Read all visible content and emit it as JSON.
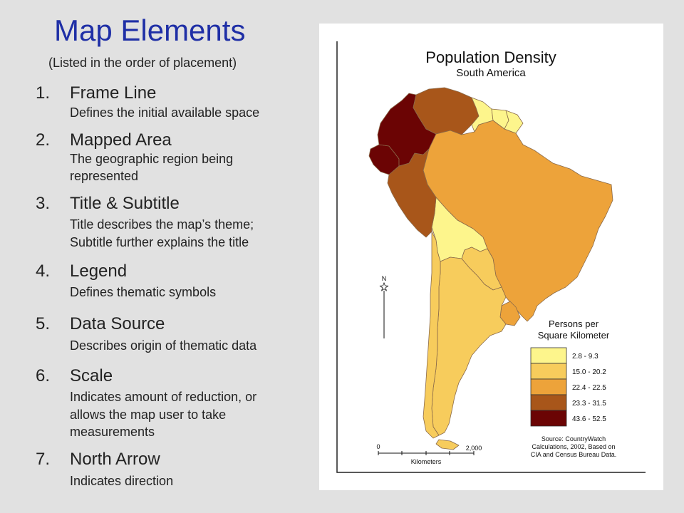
{
  "slide": {
    "title": "Map Elements",
    "subtitle": "(Listed in the order of placement)"
  },
  "items": [
    {
      "num": "1.",
      "head": "Frame Line",
      "desc": [
        "Defines the initial available space"
      ]
    },
    {
      "num": "2.",
      "head": "Mapped Area",
      "desc": [
        "The geographic region being",
        "represented"
      ]
    },
    {
      "num": "3.",
      "head": "Title & Subtitle",
      "desc": [
        "Title describes the map’s theme;",
        "Subtitle further explains the title"
      ]
    },
    {
      "num": "4.",
      "head": "Legend",
      "desc": [
        "Defines thematic symbols"
      ]
    },
    {
      "num": "5.",
      "head": "Data Source",
      "desc": [
        "Describes origin of thematic data"
      ]
    },
    {
      "num": "6.",
      "head": "Scale",
      "desc": [
        "Indicates amount of reduction, or",
        "allows the map user to take",
        "measurements"
      ]
    },
    {
      "num": "7.",
      "head": "North Arrow",
      "desc": [
        "Indicates direction"
      ]
    }
  ],
  "map": {
    "title": "Population Density",
    "subtitle": "South America",
    "north_label": "N",
    "legend": {
      "title_line1": "Persons per",
      "title_line2": "Square Kilometer",
      "classes": [
        {
          "label": "2.8 - 9.3",
          "color": "#fdf58c"
        },
        {
          "label": "15.0 - 20.2",
          "color": "#f7cc5c"
        },
        {
          "label": "22.4 - 22.5",
          "color": "#eda33a"
        },
        {
          "label": "23.3 - 31.5",
          "color": "#a8561a"
        },
        {
          "label": "43.6 - 52.5",
          "color": "#6b0404"
        }
      ]
    },
    "source": {
      "line1": "Source: CountryWatch",
      "line2": "Calculations, 2002, Based on",
      "line3": "CIA and Census Bureau Data."
    },
    "scale": {
      "start": "0",
      "end": "2,000",
      "unit": "Kilometers"
    }
  }
}
